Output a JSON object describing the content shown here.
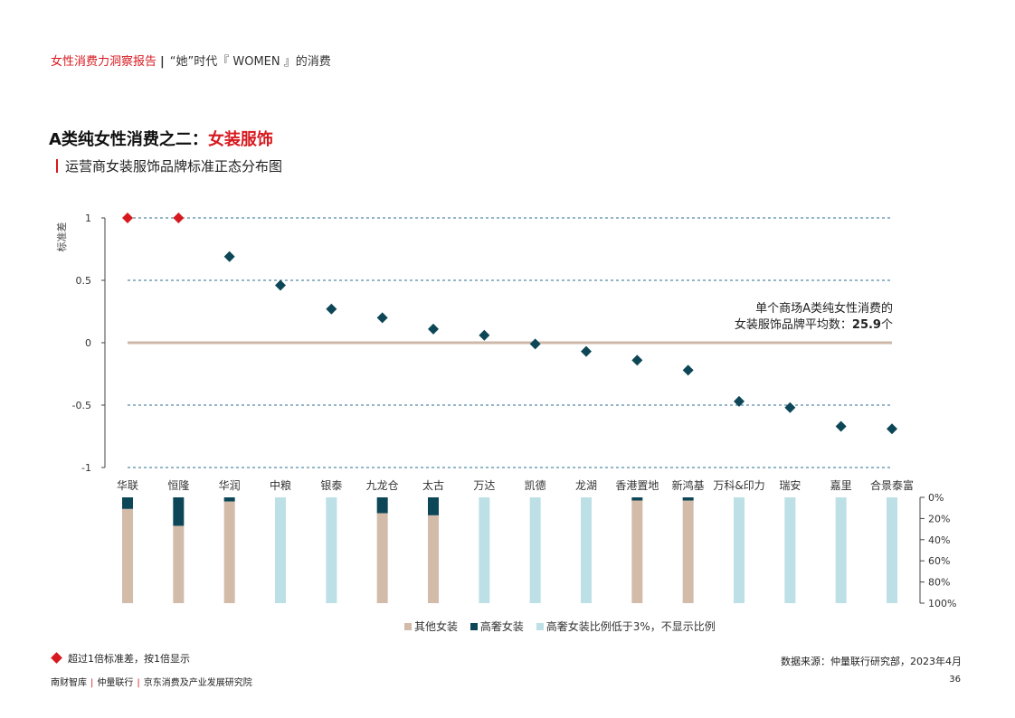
{
  "header": {
    "report_name": "女性消费力洞察报告",
    "separator": "|",
    "section_name": "“她”时代『 WOMEN 』的消费"
  },
  "title": {
    "prefix": "A类纯女性消费之二：",
    "highlight": "女装服饰"
  },
  "subtitle": "运营商女装服饰品牌标准正态分布图",
  "colors": {
    "accent_red": "#d7191f",
    "dark_teal": "#0d4757",
    "beige": "#d3bba9",
    "light_blue": "#bde0e6",
    "baseline": "#cdb8a8",
    "grid": "#2a6f8f"
  },
  "chart_data": [
    {
      "type": "scatter",
      "ylabel": "标准差",
      "ylim": [
        -1,
        1
      ],
      "yticks": [
        "1",
        "0.5",
        "0",
        "-0.5",
        "-1"
      ],
      "ytick_values": [
        1,
        0.5,
        0,
        -0.5,
        -1
      ],
      "grid": "dashed horizontal",
      "categories": [
        "华联",
        "恒隆",
        "华润",
        "中粮",
        "银泰",
        "九龙仓",
        "太古",
        "万达",
        "凯德",
        "龙湖",
        "香港置地",
        "新鸿基",
        "万科&印力",
        "瑞安",
        "嘉里",
        "合景泰富"
      ],
      "values": [
        1,
        1,
        0.69,
        0.46,
        0.27,
        0.2,
        0.11,
        0.06,
        -0.01,
        -0.07,
        -0.14,
        -0.22,
        -0.47,
        -0.52,
        -0.67,
        -0.69
      ],
      "capped": [
        true,
        true,
        false,
        false,
        false,
        false,
        false,
        false,
        false,
        false,
        false,
        false,
        false,
        false,
        false,
        false
      ],
      "annotation": {
        "line1": "单个商场A类纯女性消费的",
        "line2_prefix": "女装服饰品牌平均数：",
        "line2_value": "25.9",
        "line2_suffix": "个"
      }
    },
    {
      "type": "bar",
      "stacked": true,
      "categories": [
        "华联",
        "恒隆",
        "华润",
        "中粮",
        "银泰",
        "九龙仓",
        "太古",
        "万达",
        "凯德",
        "龙湖",
        "香港置地",
        "新鸿基",
        "万科&印力",
        "瑞安",
        "嘉里",
        "合景泰富"
      ],
      "yticks": [
        "0%",
        "20%",
        "40%",
        "60%",
        "80%",
        "100%"
      ],
      "ylim": [
        0,
        100
      ],
      "series": [
        {
          "name": "高奢女装",
          "values": [
            11,
            27,
            4,
            null,
            null,
            15,
            17,
            null,
            null,
            null,
            3,
            3,
            null,
            null,
            null,
            null
          ]
        },
        {
          "name": "其他女装",
          "values": [
            89,
            73,
            96,
            null,
            null,
            85,
            83,
            null,
            null,
            null,
            97,
            97,
            null,
            null,
            null,
            null
          ]
        }
      ],
      "below_3pct": [
        false,
        false,
        false,
        true,
        true,
        false,
        false,
        true,
        true,
        true,
        false,
        false,
        true,
        true,
        true,
        true
      ],
      "legend": [
        "其他女装",
        "高奢女装",
        "高奢女装比例低于3%，不显示比例"
      ]
    }
  ],
  "note": "超过1倍标准差，按1倍显示",
  "source": "数据来源：仲量联行研究部，2023年4月",
  "footer": [
    "南财智库",
    "仲量联行",
    "京东消费及产业发展研究院"
  ],
  "page_number": "36"
}
